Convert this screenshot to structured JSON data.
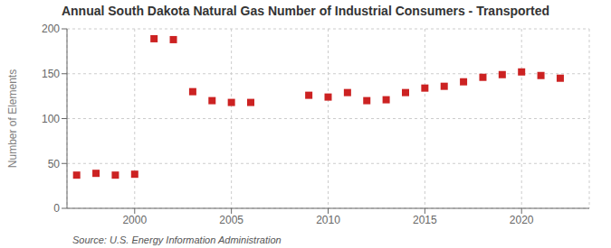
{
  "chart_data": {
    "type": "scatter",
    "title": "Annual South Dakota Natural Gas Number of Industrial Consumers - Transported",
    "ylabel": "Number of Elements",
    "annotations": [
      "Source: U.S. Energy Information Administration"
    ],
    "x": [
      1997,
      1998,
      1999,
      2000,
      2001,
      2002,
      2003,
      2004,
      2005,
      2006,
      2009,
      2010,
      2011,
      2012,
      2013,
      2014,
      2015,
      2016,
      2017,
      2018,
      2019,
      2020,
      2021,
      2022
    ],
    "values": [
      37,
      39,
      37,
      38,
      189,
      188,
      130,
      120,
      118,
      118,
      126,
      124,
      129,
      120,
      121,
      129,
      134,
      136,
      141,
      146,
      149,
      152,
      148,
      145
    ],
    "color": "#cc2222",
    "marker": "square",
    "xlim": [
      1996.5,
      2023.5
    ],
    "ylim": [
      0,
      200
    ],
    "xticks": [
      2000,
      2005,
      2010,
      2015,
      2020
    ],
    "yticks": [
      0,
      50,
      100,
      150,
      200
    ],
    "grid": true
  }
}
